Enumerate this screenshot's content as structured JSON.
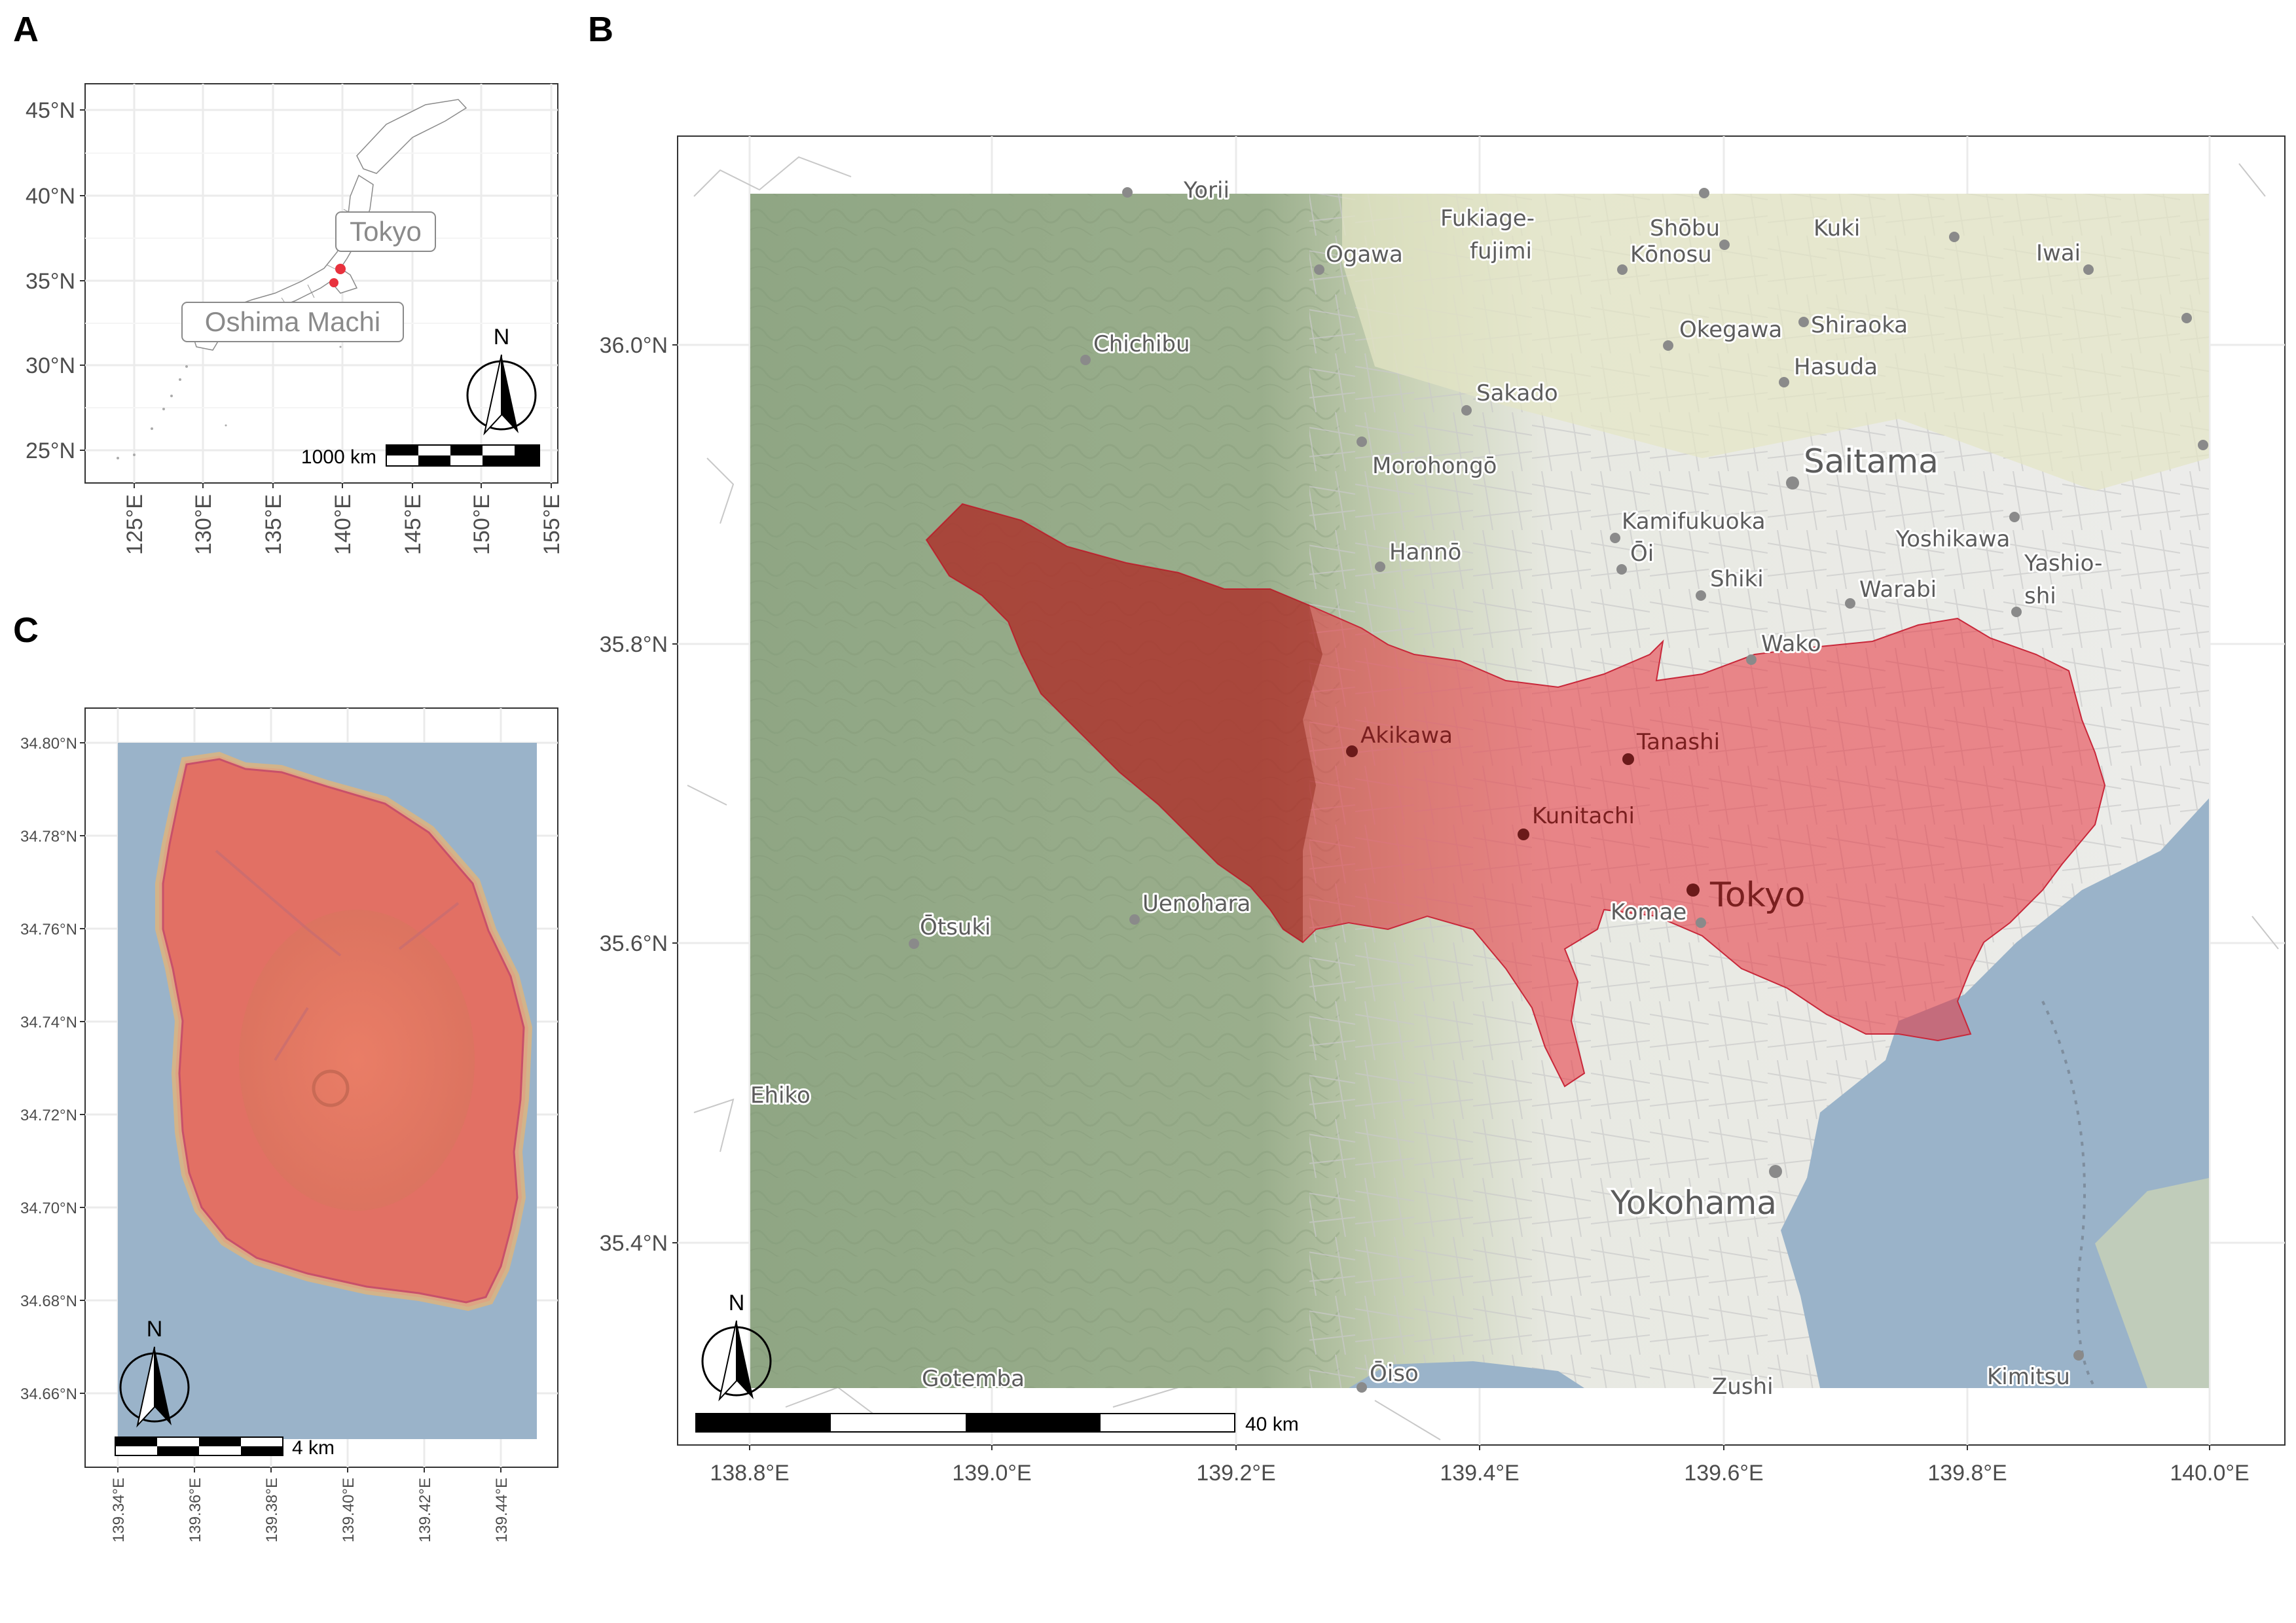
{
  "panels": {
    "a": {
      "letter": "A",
      "y_ticks": [
        "45°N",
        "40°N",
        "35°N",
        "30°N",
        "25°N"
      ],
      "x_ticks": [
        "125°E",
        "130°E",
        "135°E",
        "140°E",
        "145°E",
        "150°E",
        "155°E"
      ],
      "labels": {
        "tokyo": "Tokyo",
        "oshima": "Oshima Machi"
      },
      "scale_label": "1000 km",
      "north": "N"
    },
    "b": {
      "letter": "B",
      "y_ticks": [
        "36.0°N",
        "35.8°N",
        "35.6°N",
        "35.4°N"
      ],
      "x_ticks": [
        "138.8°E",
        "139.0°E",
        "139.2°E",
        "139.4°E",
        "139.6°E",
        "139.8°E",
        "140.0°E"
      ],
      "places": {
        "fukiage": "Fukiage-",
        "fujimi": "fujimi",
        "shobu": "Shōbu",
        "konosu": "Kōnosu",
        "kuki": "Kuki",
        "iwai": "Iwai",
        "ogawa": "Ogawa",
        "chichibu": "Chichibu",
        "okegawa": "Okegawa",
        "shiraoka": "Shiraoka",
        "hasuda": "Hasuda",
        "sakado": "Sakado",
        "morohongo": "Morohongō",
        "saitama": "Saitama",
        "kamifukuoka": "Kamifukuoka",
        "oi": "Ōi",
        "yoshikawa": "Yoshikawa",
        "hanno": "Hannō",
        "shiki": "Shiki",
        "warabi": "Warabi",
        "yashio1": "Yashio-",
        "yashio2": "shi",
        "wako": "Wako",
        "akikawa": "Akikawa",
        "tanashi": "Tanashi",
        "kunitachi": "Kunitachi",
        "uenohara": "Uenohara",
        "otsuki": "Ōtsuki",
        "komae": "Komae",
        "tokyo": "Tokyo",
        "chiko": "Ehiko",
        "yokohama": "Yokohama",
        "gotemba": "Gotemba",
        "oiso": "Ōiso",
        "zushi": "Zushi",
        "kimitsu": "Kimitsu",
        "yorii": "Yorii"
      },
      "scale_label": "40 km",
      "north": "N"
    },
    "c": {
      "letter": "C",
      "y_ticks": [
        "34.80°N",
        "34.78°N",
        "34.76°N",
        "34.74°N",
        "34.72°N",
        "34.70°N",
        "34.68°N",
        "34.66°N"
      ],
      "x_ticks": [
        "139.34°E",
        "139.36°E",
        "139.38°E",
        "139.40°E",
        "139.42°E",
        "139.44°E"
      ],
      "scale_label": "4 km",
      "north": "N"
    }
  },
  "colors": {
    "highlight": "#e8313d",
    "sea": "#9ab3c9",
    "forest": "#9aae8c",
    "urban": "#ececea"
  }
}
